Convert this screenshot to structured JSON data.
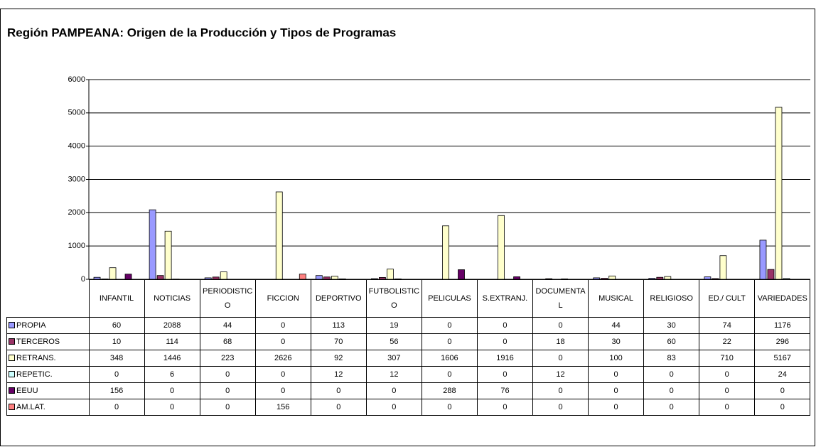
{
  "chart_data": {
    "type": "bar",
    "title": "Región PAMPEANA: Origen de la Producción y Tipos de Programas",
    "categories": [
      "INFANTIL",
      "NOTICIAS",
      "PERIODISTICO",
      "FICCION",
      "DEPORTIVO",
      "FUTBOLISTICO",
      "PELICULAS",
      "S.EXTRANJ.",
      "DOCUMENTAL",
      "MUSICAL",
      "RELIGIOSO",
      "ED./ CULT",
      "VARIEDADES"
    ],
    "series": [
      {
        "name": "PROPIA",
        "color": "#9999ff",
        "values": [
          60,
          2088,
          44,
          0,
          113,
          19,
          0,
          0,
          0,
          44,
          30,
          74,
          1176
        ]
      },
      {
        "name": "TERCEROS",
        "color": "#993366",
        "values": [
          10,
          114,
          68,
          0,
          70,
          56,
          0,
          0,
          18,
          30,
          60,
          22,
          296
        ]
      },
      {
        "name": "RETRANS.",
        "color": "#ffffcc",
        "values": [
          348,
          1446,
          223,
          2626,
          92,
          307,
          1606,
          1916,
          0,
          100,
          83,
          710,
          5167
        ]
      },
      {
        "name": "REPETIC.",
        "color": "#ccffff",
        "values": [
          0,
          6,
          0,
          0,
          12,
          12,
          0,
          0,
          12,
          0,
          0,
          0,
          24
        ]
      },
      {
        "name": "EEUU",
        "color": "#660066",
        "values": [
          156,
          0,
          0,
          0,
          0,
          0,
          288,
          76,
          0,
          0,
          0,
          0,
          0
        ]
      },
      {
        "name": "AM.LAT.",
        "color": "#ff8080",
        "values": [
          0,
          0,
          0,
          156,
          0,
          0,
          0,
          0,
          0,
          0,
          0,
          0,
          0
        ]
      }
    ],
    "ylim": [
      0,
      6000
    ],
    "yticks": [
      0,
      1000,
      2000,
      3000,
      4000,
      5000,
      6000
    ],
    "grid": true
  }
}
